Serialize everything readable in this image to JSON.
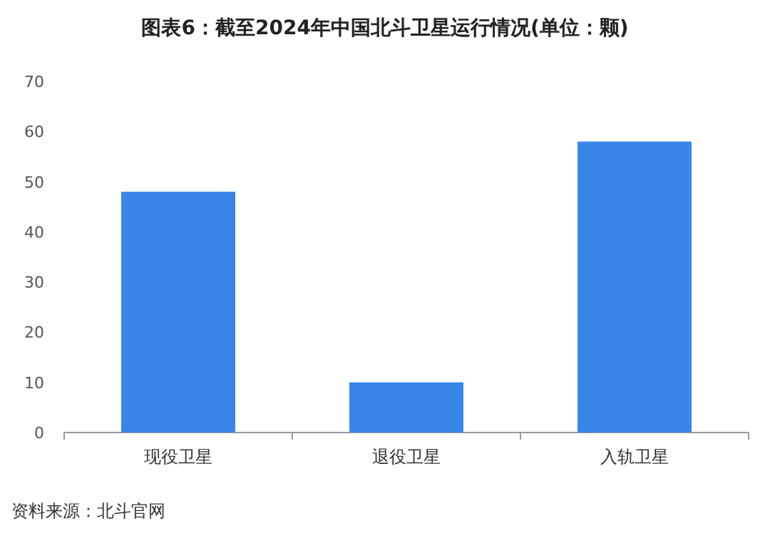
{
  "chart_data": {
    "type": "bar",
    "title": "图表6：截至2024年中国北斗卫星运行情况(单位：颗)",
    "categories": [
      "现役卫星",
      "退役卫星",
      "入轨卫星"
    ],
    "values": [
      48,
      10,
      58
    ],
    "color": "#3a86e8",
    "ylim": [
      0,
      70
    ],
    "yticks": [
      0,
      10,
      20,
      30,
      40,
      50,
      60,
      70
    ],
    "grid": false,
    "annotations": [
      "资料来源：北斗官网"
    ]
  }
}
